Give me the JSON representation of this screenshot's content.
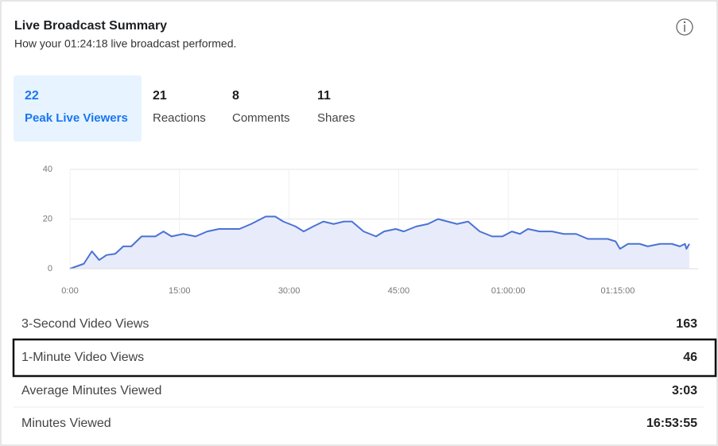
{
  "header": {
    "title": "Live Broadcast Summary",
    "subtitle": "How your 01:24:18 live broadcast performed."
  },
  "tabs": [
    {
      "value": 22,
      "label": "Peak Live Viewers",
      "selected": true
    },
    {
      "value": 21,
      "label": "Reactions"
    },
    {
      "value": 8,
      "label": "Comments"
    },
    {
      "value": 11,
      "label": "Shares"
    }
  ],
  "chart_data": {
    "type": "line",
    "x": [
      0,
      1.9,
      3,
      4,
      5,
      6.2,
      7.3,
      8.4,
      9.8,
      11.7,
      12.8,
      13.9,
      15.5,
      17.2,
      18.8,
      20.4,
      23.2,
      24.8,
      26.8,
      28.1,
      29.2,
      30.9,
      32,
      33.3,
      34.7,
      36.1,
      37.5,
      38.6,
      40.2,
      41.9,
      43,
      44.6,
      45.7,
      47.4,
      49,
      50.4,
      51.7,
      53,
      54.5,
      56.1,
      57.8,
      59.2,
      60.5,
      61.6,
      62.7,
      64.3,
      66,
      67.6,
      69.3,
      70.9,
      73.6,
      74.7,
      75.3,
      76.4,
      78,
      79.1,
      80.8,
      82.4,
      83.5,
      84.2,
      84.4,
      84.8
    ],
    "series": [
      {
        "color": "#4a72d6",
        "values": [
          0,
          2,
          7,
          3.5,
          5.5,
          6,
          9,
          9,
          13,
          13,
          15,
          13,
          14,
          13,
          15,
          16,
          16,
          18,
          21,
          21,
          19,
          17,
          15,
          17,
          19,
          18,
          19,
          19,
          15,
          13,
          15,
          16,
          15,
          17,
          18,
          20,
          19,
          18,
          19,
          15,
          13,
          13,
          15,
          14,
          16,
          15,
          15,
          14,
          14,
          12,
          12,
          11,
          8,
          10,
          10,
          9,
          10,
          10,
          9,
          10,
          8,
          10
        ]
      }
    ],
    "xlim": [
      0,
      86
    ],
    "xticks": [
      {
        "value": 0,
        "label": "0:00"
      },
      {
        "value": 15,
        "label": "15:00"
      },
      {
        "value": 30,
        "label": "30:00"
      },
      {
        "value": 45,
        "label": "45:00"
      },
      {
        "value": 60,
        "label": "01:00:00"
      },
      {
        "value": 75,
        "label": "01:15:00"
      }
    ],
    "ylim": [
      0,
      40
    ],
    "yticks": [
      0,
      20,
      40
    ],
    "grid": true,
    "area_color": "#e8ecfa"
  },
  "metrics": [
    {
      "label": "3-Second Video Views",
      "value": 163
    },
    {
      "label": "1-Minute Video Views",
      "value": 46,
      "highlighted": true
    },
    {
      "label": "Average Minutes Viewed",
      "value": "3:03"
    },
    {
      "label": "Minutes Viewed",
      "value": "16:53:55"
    }
  ]
}
